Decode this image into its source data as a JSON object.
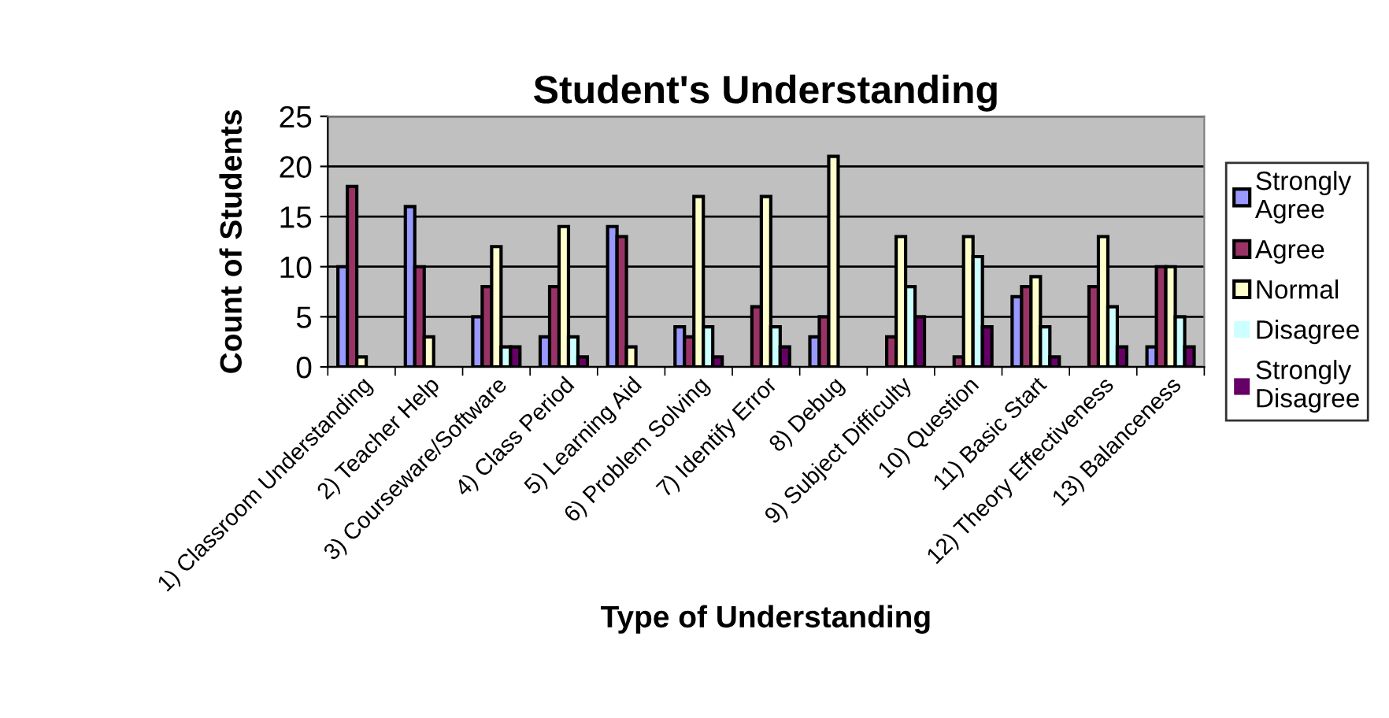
{
  "chart_data": {
    "type": "bar",
    "title": "Student's Understanding",
    "xlabel": "Type of Understanding",
    "ylabel": "Count of Students",
    "categories": [
      "1) Classroom Understanding",
      "2) Teacher Help",
      "3) Courseware/Software",
      "4) Class Period",
      "5) Learning Aid",
      "6) Problem Solving",
      "7) Identify Error",
      "8) Debug",
      "9) Subject Difficulty",
      "10) Question",
      "11) Basic Start",
      "12) Theory Effectiveness",
      "13) Balanceness"
    ],
    "series": [
      {
        "name": "Strongly Agree",
        "color": "#9999ff",
        "values": [
          10,
          16,
          5,
          3,
          14,
          4,
          0,
          3,
          0,
          0,
          7,
          0,
          2
        ]
      },
      {
        "name": "Agree",
        "color": "#993366",
        "values": [
          18,
          10,
          8,
          8,
          13,
          3,
          6,
          5,
          3,
          1,
          8,
          8,
          10
        ]
      },
      {
        "name": "Normal",
        "color": "#ffffcc",
        "values": [
          1,
          3,
          12,
          14,
          2,
          17,
          17,
          21,
          13,
          13,
          9,
          13,
          10
        ]
      },
      {
        "name": "Disagree",
        "color": "#ccffff",
        "values": [
          0,
          0,
          2,
          3,
          0,
          4,
          4,
          0,
          8,
          11,
          4,
          6,
          5
        ]
      },
      {
        "name": "Strongly Disagree",
        "color": "#660066",
        "values": [
          0,
          0,
          2,
          1,
          0,
          1,
          2,
          0,
          5,
          4,
          1,
          2,
          2
        ]
      }
    ],
    "ylim": [
      0,
      25
    ],
    "yticks": [
      0,
      5,
      10,
      15,
      20,
      25
    ],
    "grid": "y",
    "legend": "right"
  }
}
